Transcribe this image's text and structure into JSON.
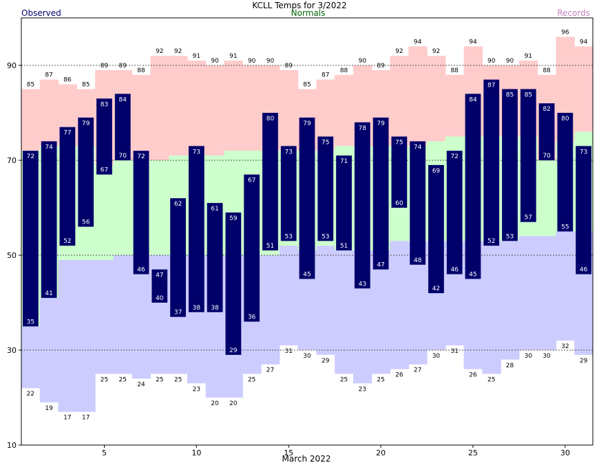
{
  "title": "KCLL Temps for 3/2022",
  "legend": {
    "observed": "Observed",
    "normals": "Normals",
    "records": "Records"
  },
  "colors": {
    "record_band": "#ffcccc",
    "normal_band": "#ccffcc",
    "low_band": "#ccccff",
    "observed_bar": "#00006b",
    "observed_legend": "#00006b",
    "normals_legend": "#006400",
    "records_legend": "#c080c0"
  },
  "chart_data": {
    "type": "bar",
    "xlabel": "March 2022",
    "ylabel": "",
    "xlim": [
      1,
      31
    ],
    "ylim": [
      10,
      100
    ],
    "x_ticks": [
      5,
      10,
      15,
      20,
      25,
      30
    ],
    "y_ticks": [
      10,
      30,
      50,
      70,
      90
    ],
    "grid": "dashed lines at 30, 50, 70, 90",
    "categories": [
      1,
      2,
      3,
      4,
      5,
      6,
      7,
      8,
      9,
      10,
      11,
      12,
      13,
      14,
      15,
      16,
      17,
      18,
      19,
      20,
      21,
      22,
      23,
      24,
      25,
      26,
      27,
      28,
      29,
      30,
      31
    ],
    "series": [
      {
        "name": "Records",
        "kind": "record_high",
        "values": [
          85,
          87,
          86,
          85,
          89,
          89,
          88,
          92,
          92,
          91,
          90,
          91,
          90,
          90,
          89,
          85,
          87,
          88,
          90,
          89,
          92,
          94,
          92,
          88,
          94,
          90,
          90,
          91,
          88,
          96,
          94
        ]
      },
      {
        "name": "Records",
        "kind": "record_low",
        "values": [
          22,
          19,
          17,
          17,
          25,
          25,
          24,
          25,
          25,
          23,
          20,
          20,
          25,
          27,
          31,
          30,
          29,
          25,
          23,
          25,
          26,
          27,
          30,
          31,
          26,
          25,
          28,
          30,
          30,
          32,
          29
        ]
      },
      {
        "name": "Normals",
        "kind": "normal_high",
        "values": [
          72,
          73,
          73,
          73,
          69,
          70,
          70,
          70,
          71,
          71,
          71,
          72,
          72,
          72,
          72,
          72,
          72,
          73,
          73,
          73,
          73,
          73,
          74,
          75,
          75,
          75,
          75,
          75,
          70,
          74,
          76
        ]
      },
      {
        "name": "Normals",
        "kind": "normal_low",
        "values": [
          35,
          41,
          49,
          49,
          49,
          50,
          50,
          50,
          50,
          50,
          50,
          50,
          50,
          50,
          52,
          51,
          52,
          51,
          51,
          51,
          53,
          53,
          53,
          53,
          53,
          53,
          53,
          54,
          54,
          55,
          55
        ]
      },
      {
        "name": "Observed",
        "kind": "observed_high",
        "values": [
          72,
          74,
          77,
          79,
          83,
          84,
          72,
          47,
          62,
          73,
          61,
          59,
          67,
          80,
          73,
          79,
          75,
          71,
          78,
          79,
          75,
          74,
          69,
          72,
          84,
          87,
          85,
          85,
          82,
          80,
          73
        ]
      },
      {
        "name": "Observed",
        "kind": "observed_low",
        "values": [
          35,
          41,
          52,
          56,
          67,
          70,
          46,
          40,
          37,
          38,
          38,
          29,
          36,
          51,
          53,
          45,
          53,
          51,
          43,
          47,
          60,
          48,
          42,
          46,
          45,
          52,
          53,
          57,
          70,
          55,
          46
        ]
      }
    ]
  }
}
